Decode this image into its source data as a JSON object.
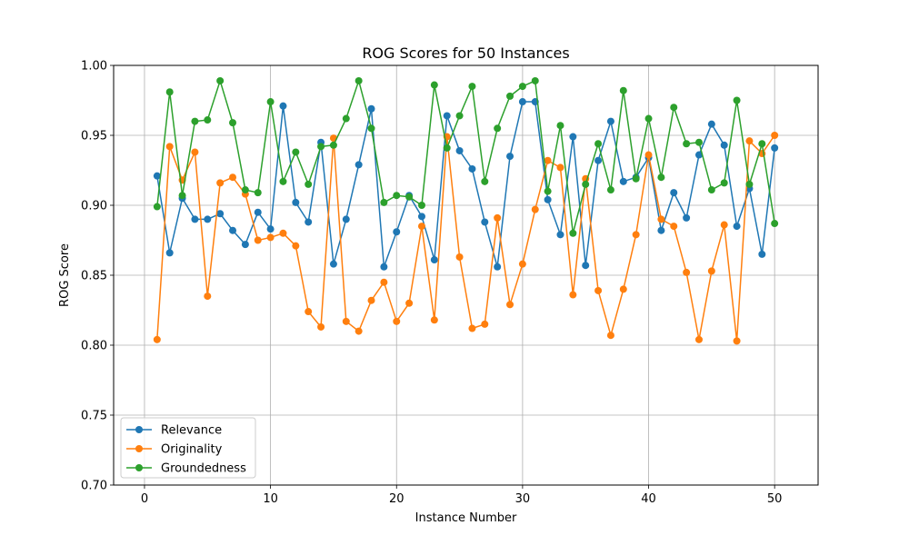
{
  "chart_data": {
    "type": "line",
    "title": "ROG Scores for 50 Instances",
    "xlabel": "Instance Number",
    "ylabel": "ROG Score",
    "xlim": [
      -2.45,
      53.45
    ],
    "ylim": [
      0.7,
      1.0
    ],
    "xticks": [
      0,
      10,
      20,
      30,
      40,
      50
    ],
    "yticks": [
      0.7,
      0.75,
      0.8,
      0.85,
      0.9,
      0.95,
      1.0
    ],
    "xtick_labels": [
      "0",
      "10",
      "20",
      "30",
      "40",
      "50"
    ],
    "ytick_labels": [
      "0.70",
      "0.75",
      "0.80",
      "0.85",
      "0.90",
      "0.95",
      "1.00"
    ],
    "grid": true,
    "legend_position": "lower-left",
    "x": [
      1,
      2,
      3,
      4,
      5,
      6,
      7,
      8,
      9,
      10,
      11,
      12,
      13,
      14,
      15,
      16,
      17,
      18,
      19,
      20,
      21,
      22,
      23,
      24,
      25,
      26,
      27,
      28,
      29,
      30,
      31,
      32,
      33,
      34,
      35,
      36,
      37,
      38,
      39,
      40,
      41,
      42,
      43,
      44,
      45,
      46,
      47,
      48,
      49,
      50
    ],
    "series": [
      {
        "name": "Relevance",
        "color": "#1f77b4",
        "values": [
          0.921,
          0.866,
          0.905,
          0.89,
          0.89,
          0.894,
          0.882,
          0.872,
          0.895,
          0.883,
          0.971,
          0.902,
          0.888,
          0.945,
          0.858,
          0.89,
          0.929,
          0.969,
          0.856,
          0.881,
          0.907,
          0.892,
          0.861,
          0.964,
          0.939,
          0.926,
          0.888,
          0.856,
          0.935,
          0.974,
          0.974,
          0.904,
          0.879,
          0.949,
          0.857,
          0.932,
          0.96,
          0.917,
          0.92,
          0.934,
          0.882,
          0.909,
          0.891,
          0.936,
          0.958,
          0.943,
          0.885,
          0.912,
          0.865,
          0.941
        ]
      },
      {
        "name": "Originality",
        "color": "#ff7f0e",
        "values": [
          0.804,
          0.942,
          0.918,
          0.938,
          0.835,
          0.916,
          0.92,
          0.908,
          0.875,
          0.877,
          0.88,
          0.871,
          0.824,
          0.813,
          0.948,
          0.817,
          0.81,
          0.832,
          0.845,
          0.817,
          0.83,
          0.885,
          0.818,
          0.949,
          0.863,
          0.812,
          0.815,
          0.891,
          0.829,
          0.858,
          0.897,
          0.932,
          0.927,
          0.836,
          0.919,
          0.839,
          0.807,
          0.84,
          0.879,
          0.936,
          0.89,
          0.885,
          0.852,
          0.804,
          0.853,
          0.886,
          0.803,
          0.946,
          0.937,
          0.95
        ]
      },
      {
        "name": "Groundedness",
        "color": "#2ca02c",
        "values": [
          0.899,
          0.981,
          0.907,
          0.96,
          0.961,
          0.989,
          0.959,
          0.911,
          0.909,
          0.974,
          0.917,
          0.938,
          0.915,
          0.942,
          0.943,
          0.962,
          0.989,
          0.955,
          0.902,
          0.907,
          0.906,
          0.9,
          0.986,
          0.941,
          0.964,
          0.985,
          0.917,
          0.955,
          0.978,
          0.985,
          0.989,
          0.91,
          0.957,
          0.88,
          0.915,
          0.944,
          0.911,
          0.982,
          0.919,
          0.962,
          0.92,
          0.97,
          0.944,
          0.945,
          0.911,
          0.916,
          0.975,
          0.915,
          0.944,
          0.887
        ]
      }
    ]
  }
}
